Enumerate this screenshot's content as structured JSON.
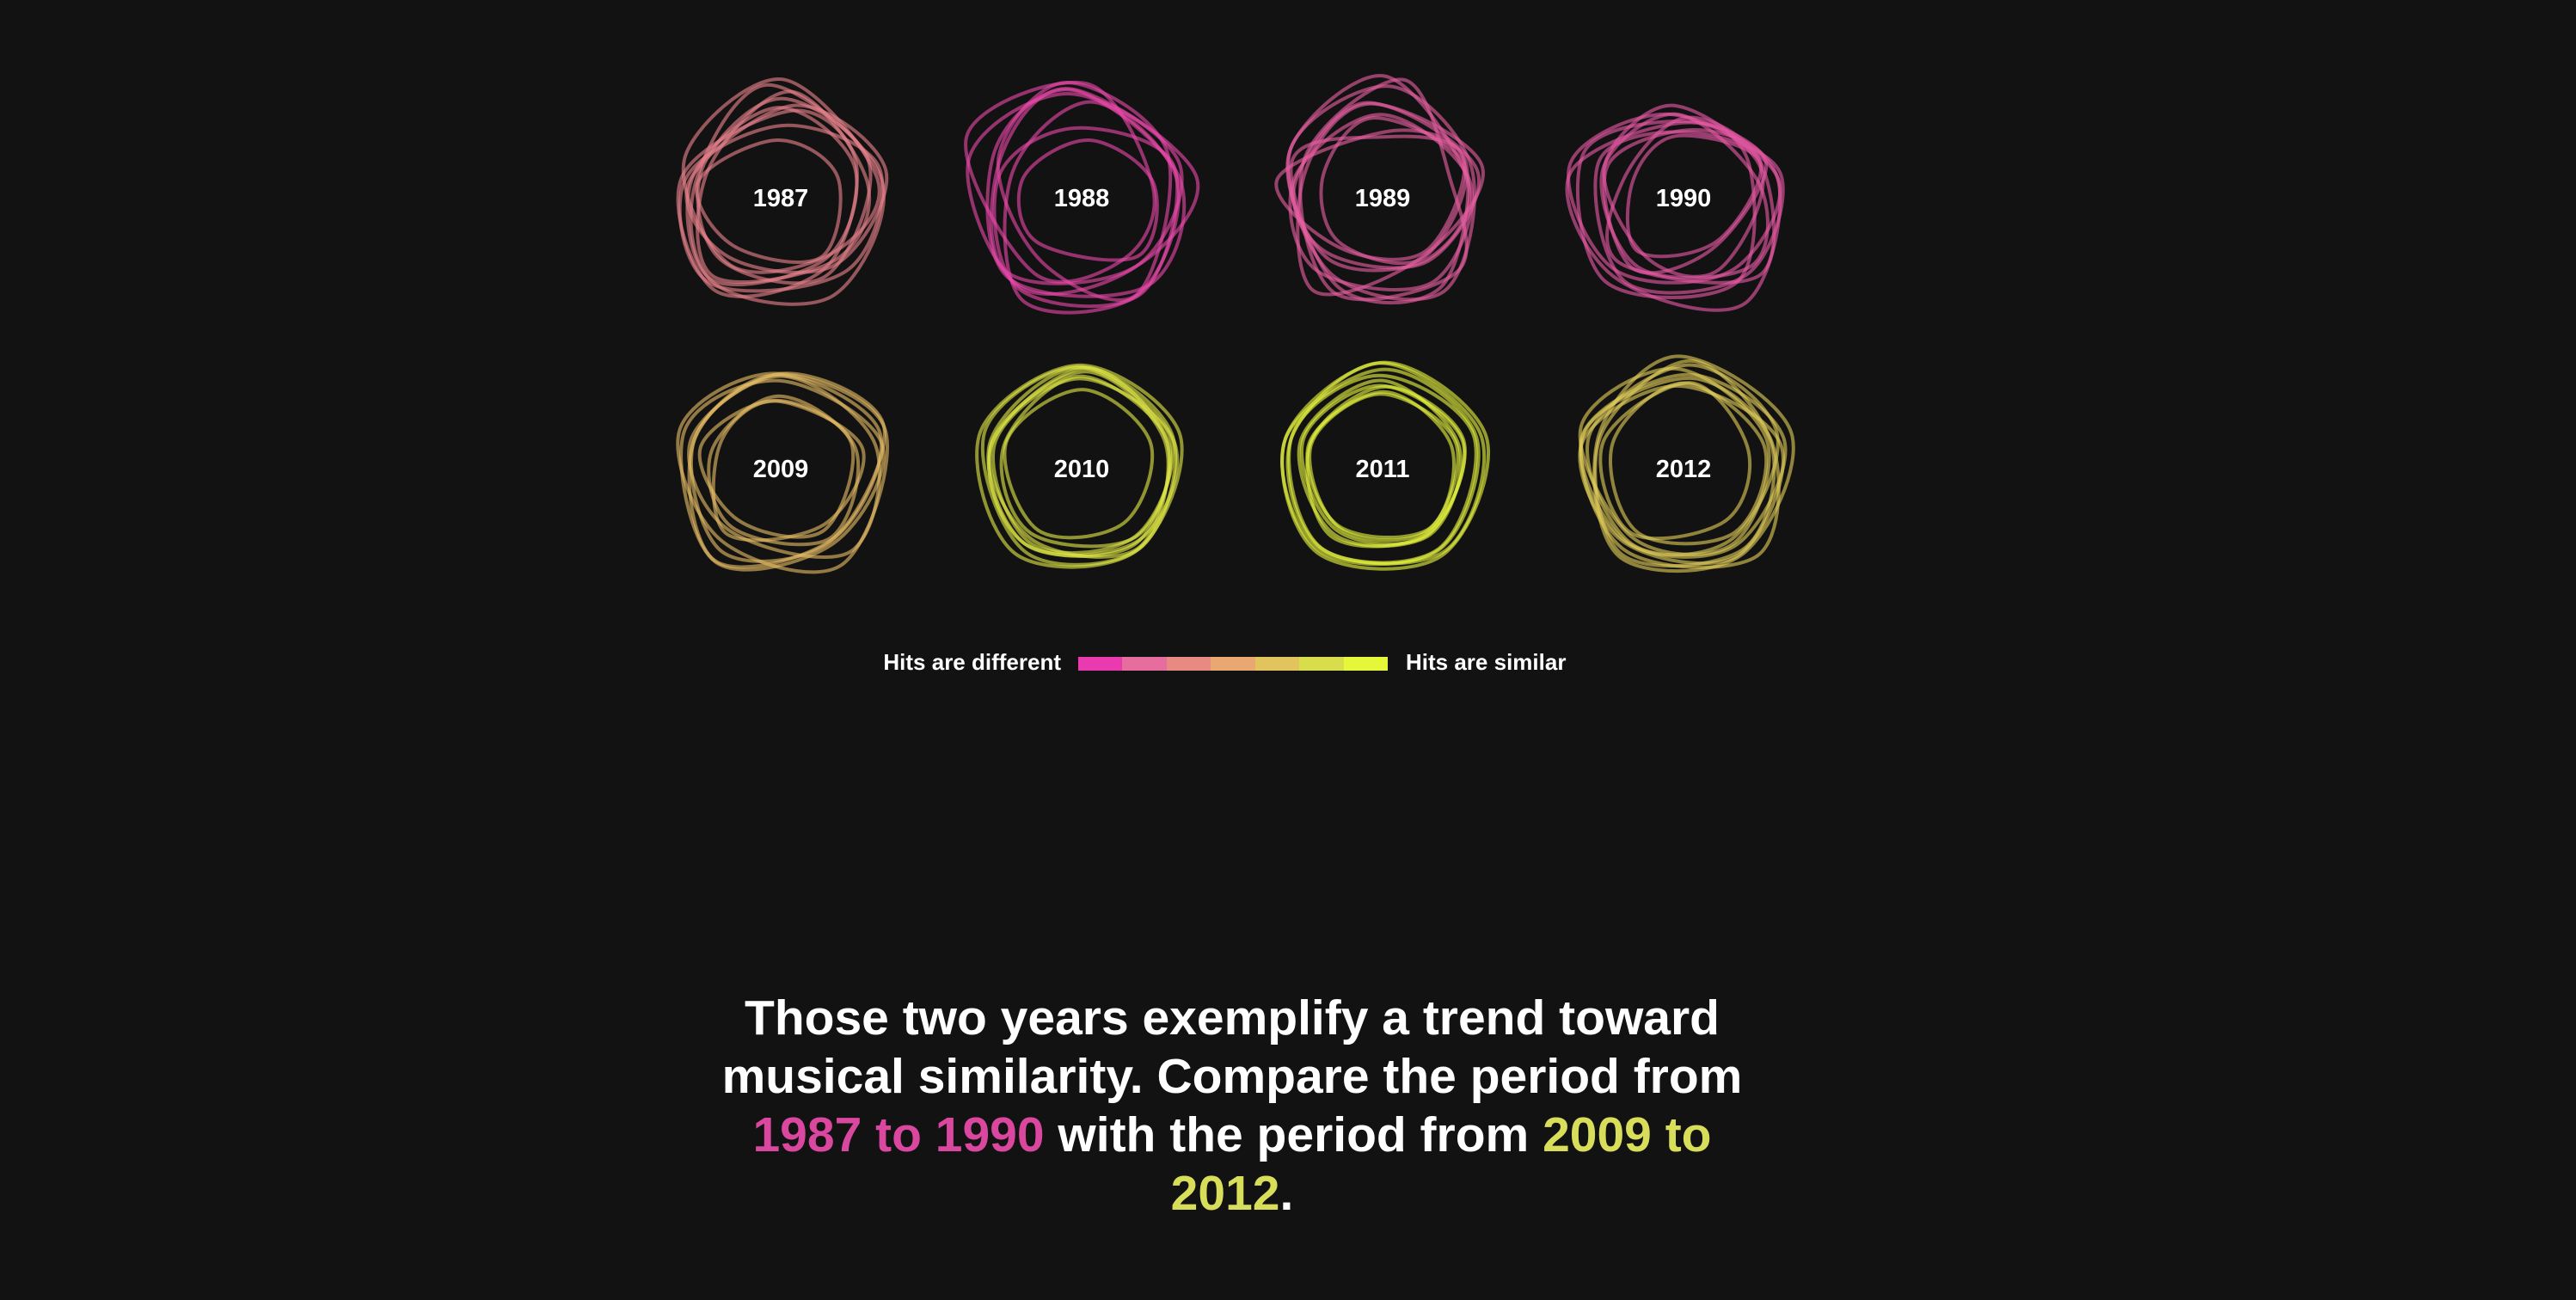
{
  "chart_data": {
    "type": "radar",
    "series": [
      {
        "year": "1987",
        "similarity": 0.28,
        "curves": 9
      },
      {
        "year": "1988",
        "similarity": 0.05,
        "curves": 8
      },
      {
        "year": "1989",
        "similarity": 0.12,
        "curves": 9
      },
      {
        "year": "1990",
        "similarity": 0.1,
        "curves": 9
      },
      {
        "year": "2009",
        "similarity": 0.62,
        "curves": 8
      },
      {
        "year": "2010",
        "similarity": 0.9,
        "curves": 8
      },
      {
        "year": "2011",
        "similarity": 0.97,
        "curves": 9
      },
      {
        "year": "2012",
        "similarity": 0.72,
        "curves": 9
      }
    ],
    "legend": {
      "left_label": "Hits are different",
      "right_label": "Hits are similar",
      "colors": [
        "#e93ab0",
        "#e66d9d",
        "#e88a82",
        "#e9a871",
        "#e2c45f",
        "#d8dd4c",
        "#e6f73a"
      ]
    }
  },
  "caption": {
    "line1": "Those two years exemplify a trend toward",
    "line2": "musical similarity. Compare the period from",
    "range1": "1987 to 1990",
    "middle": " with the period from ",
    "range2": "2009 to 2012",
    "end": "."
  },
  "colors": {
    "background": "#121212",
    "pink": "#d9479f",
    "yellow": "#d9de5a"
  }
}
